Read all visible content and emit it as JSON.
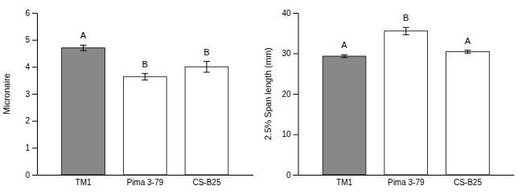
{
  "chart_data": [
    {
      "type": "bar",
      "categories": [
        "TM1",
        "Pima 3-79",
        "CS-B25"
      ],
      "values": [
        4.7,
        3.63,
        4.0
      ],
      "errors": [
        0.1,
        0.12,
        0.2
      ],
      "annotations": [
        "A",
        "B",
        "B"
      ],
      "ylabel": "Micronaire",
      "ylim": [
        0,
        6
      ],
      "yticks": [
        0,
        1,
        2,
        3,
        4,
        5,
        6
      ],
      "colors": [
        "#888888",
        "#ffffff",
        "#ffffff"
      ],
      "grid": false
    },
    {
      "type": "bar",
      "categories": [
        "TM1",
        "Pima 3-79",
        "CS-B25"
      ],
      "values": [
        29.3,
        35.5,
        30.4
      ],
      "errors": [
        0.35,
        0.9,
        0.35
      ],
      "annotations": [
        "A",
        "B",
        "A"
      ],
      "ylabel": "2.5% Span length (mm)",
      "ylim": [
        0,
        40
      ],
      "yticks": [
        0,
        10,
        20,
        30,
        40
      ],
      "colors": [
        "#888888",
        "#ffffff",
        "#ffffff"
      ],
      "grid": false
    }
  ]
}
